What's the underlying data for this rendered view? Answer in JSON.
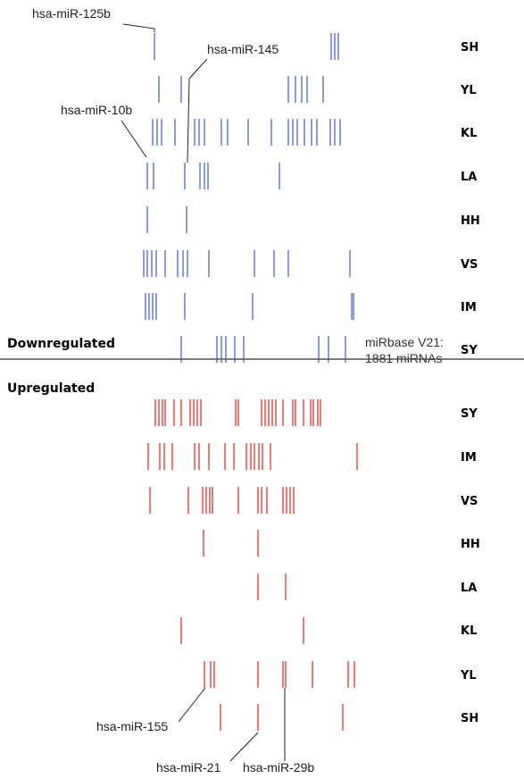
{
  "colors": {
    "down": "#4a63d6",
    "up": "#e8312a",
    "divider": "#555555",
    "leader": "#222222"
  },
  "sections": {
    "down_label": "Downregulated",
    "up_label": "Upregulated"
  },
  "note": {
    "line1": "miRbase V21:",
    "line2": "1881 miRNAs"
  },
  "annotations": {
    "mir125b": "hsa-miR-125b",
    "mir145": "hsa-miR-145",
    "mir10b": "hsa-miR-10b",
    "mir155": "hsa-miR-155",
    "mir21": "hsa-miR-21",
    "mir29b": "hsa-miR-29b"
  },
  "rows": {
    "down": [
      "SH",
      "YL",
      "KL",
      "LA",
      "HH",
      "VS",
      "IM",
      "SY"
    ],
    "up": [
      "SY",
      "IM",
      "VS",
      "HH",
      "LA",
      "KL",
      "YL",
      "SH"
    ]
  }
}
